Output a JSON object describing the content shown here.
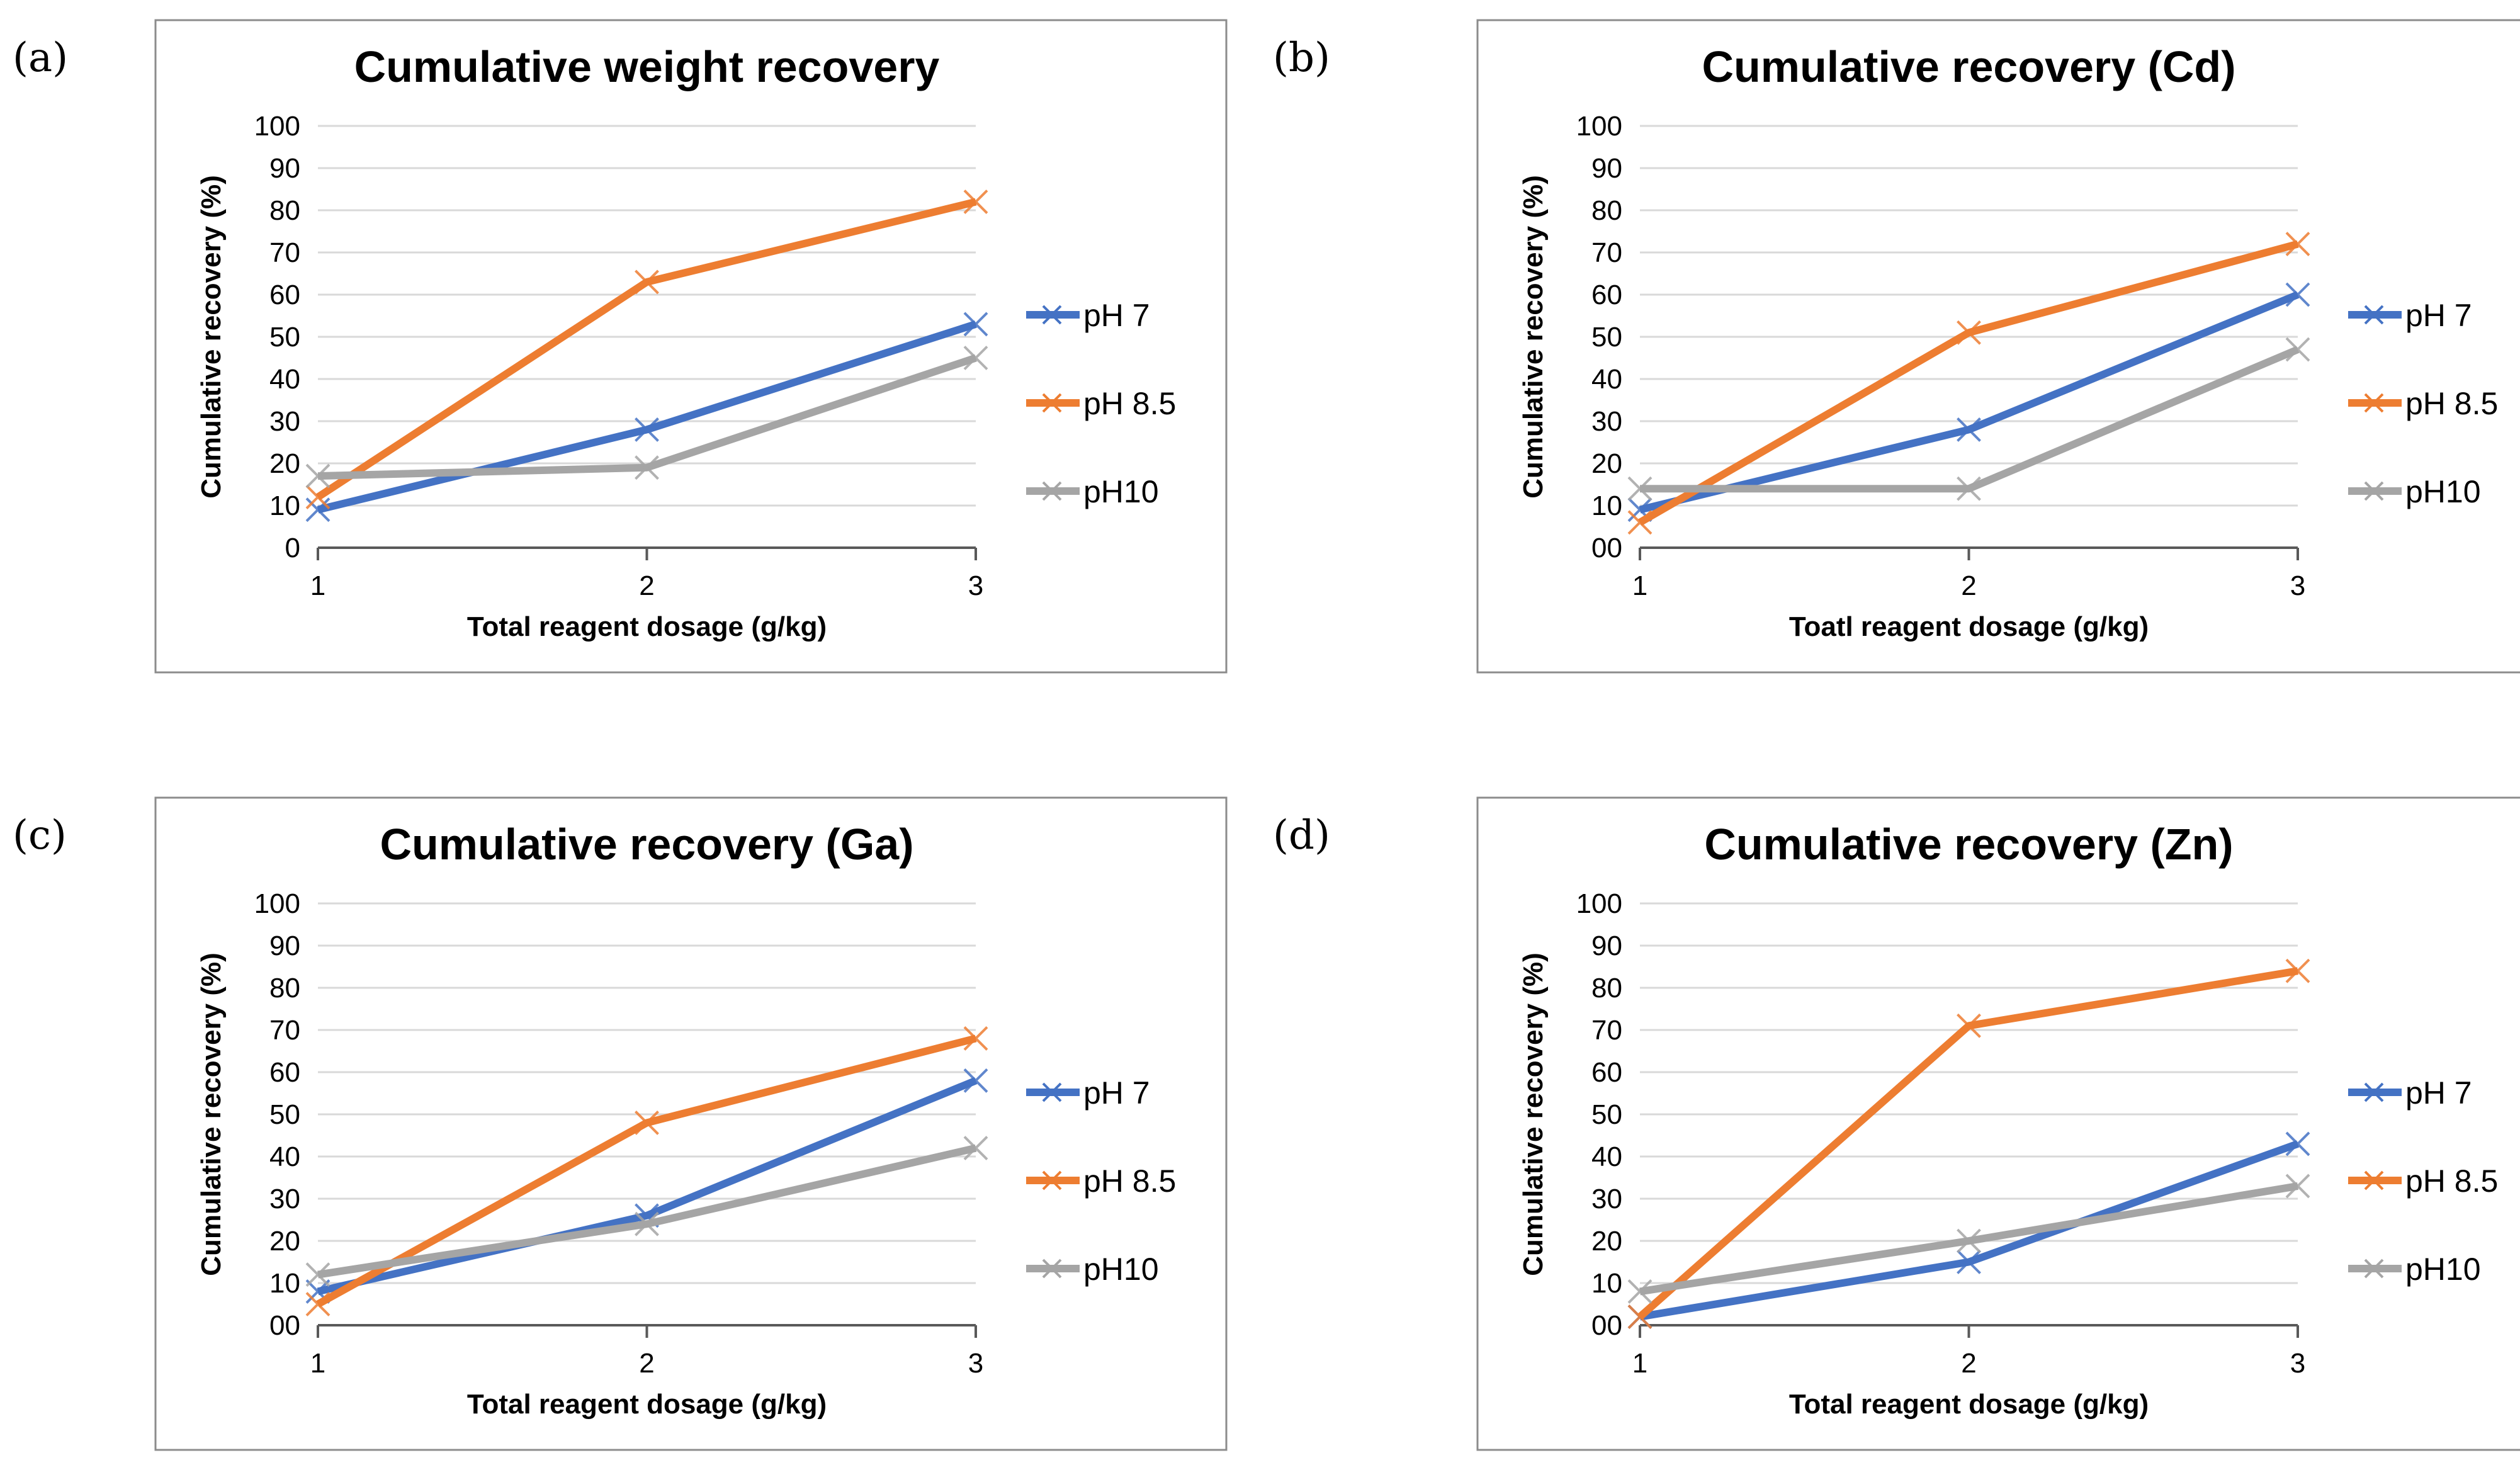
{
  "panels": [
    {
      "id": "a",
      "label": "(a)"
    },
    {
      "id": "b",
      "label": "(b)"
    },
    {
      "id": "c",
      "label": "(c)"
    },
    {
      "id": "d",
      "label": "(d)"
    }
  ],
  "chart_data": [
    {
      "type": "line",
      "title": "Cumulative weight recovery",
      "xlabel": "Total reagent dosage (g/kg)",
      "ylabel": "Cumulative recovery (%)",
      "x": [
        1,
        2,
        3
      ],
      "x_ticks": [
        "1",
        "2",
        "3"
      ],
      "ylim": [
        0,
        100
      ],
      "y_ticks": [
        "0",
        "10",
        "20",
        "30",
        "40",
        "50",
        "60",
        "70",
        "80",
        "90",
        "100"
      ],
      "legend_position": "right",
      "series": [
        {
          "name": "pH 7",
          "color": "#4472c4",
          "values": [
            9,
            28,
            53
          ]
        },
        {
          "name": "pH 8.5",
          "color": "#ed7d31",
          "values": [
            12,
            63,
            82
          ]
        },
        {
          "name": "pH10",
          "color": "#a5a5a5",
          "values": [
            17,
            19,
            45
          ]
        }
      ]
    },
    {
      "type": "line",
      "title": "Cumulative recovery (Cd)",
      "xlabel": "Toatl reagent dosage (g/kg)",
      "ylabel": "Cumulative recovery (%)",
      "x": [
        1,
        2,
        3
      ],
      "x_ticks": [
        "1",
        "2",
        "3"
      ],
      "ylim": [
        0,
        100
      ],
      "y_ticks": [
        "00",
        "10",
        "20",
        "30",
        "40",
        "50",
        "60",
        "70",
        "80",
        "90",
        "100"
      ],
      "legend_position": "right",
      "series": [
        {
          "name": "pH 7",
          "color": "#4472c4",
          "values": [
            9,
            28,
            60
          ]
        },
        {
          "name": "pH 8.5",
          "color": "#ed7d31",
          "values": [
            6,
            51,
            72
          ]
        },
        {
          "name": "pH10",
          "color": "#a5a5a5",
          "values": [
            14,
            14,
            47
          ]
        }
      ]
    },
    {
      "type": "line",
      "title": "Cumulative recovery (Ga)",
      "xlabel": "Total reagent dosage (g/kg)",
      "ylabel": "Cumulative recovery (%)",
      "x": [
        1,
        2,
        3
      ],
      "x_ticks": [
        "1",
        "2",
        "3"
      ],
      "ylim": [
        0,
        100
      ],
      "y_ticks": [
        "00",
        "10",
        "20",
        "30",
        "40",
        "50",
        "60",
        "70",
        "80",
        "90",
        "100"
      ],
      "legend_position": "right",
      "series": [
        {
          "name": "pH 7",
          "color": "#4472c4",
          "values": [
            8,
            26,
            58
          ]
        },
        {
          "name": "pH 8.5",
          "color": "#ed7d31",
          "values": [
            5,
            48,
            68
          ]
        },
        {
          "name": "pH10",
          "color": "#a5a5a5",
          "values": [
            12,
            24,
            42
          ]
        }
      ]
    },
    {
      "type": "line",
      "title": "Cumulative recovery (Zn)",
      "xlabel": "Total reagent dosage (g/kg)",
      "ylabel": "Cumulative recovery (%)",
      "x": [
        1,
        2,
        3
      ],
      "x_ticks": [
        "1",
        "2",
        "3"
      ],
      "ylim": [
        0,
        100
      ],
      "y_ticks": [
        "00",
        "10",
        "20",
        "30",
        "40",
        "50",
        "60",
        "70",
        "80",
        "90",
        "100"
      ],
      "legend_position": "right",
      "series": [
        {
          "name": "pH 7",
          "color": "#4472c4",
          "values": [
            2,
            15,
            43
          ]
        },
        {
          "name": "pH 8.5",
          "color": "#ed7d31",
          "values": [
            2,
            71,
            84
          ]
        },
        {
          "name": "pH10",
          "color": "#a5a5a5",
          "values": [
            8,
            20,
            33
          ]
        }
      ]
    }
  ]
}
